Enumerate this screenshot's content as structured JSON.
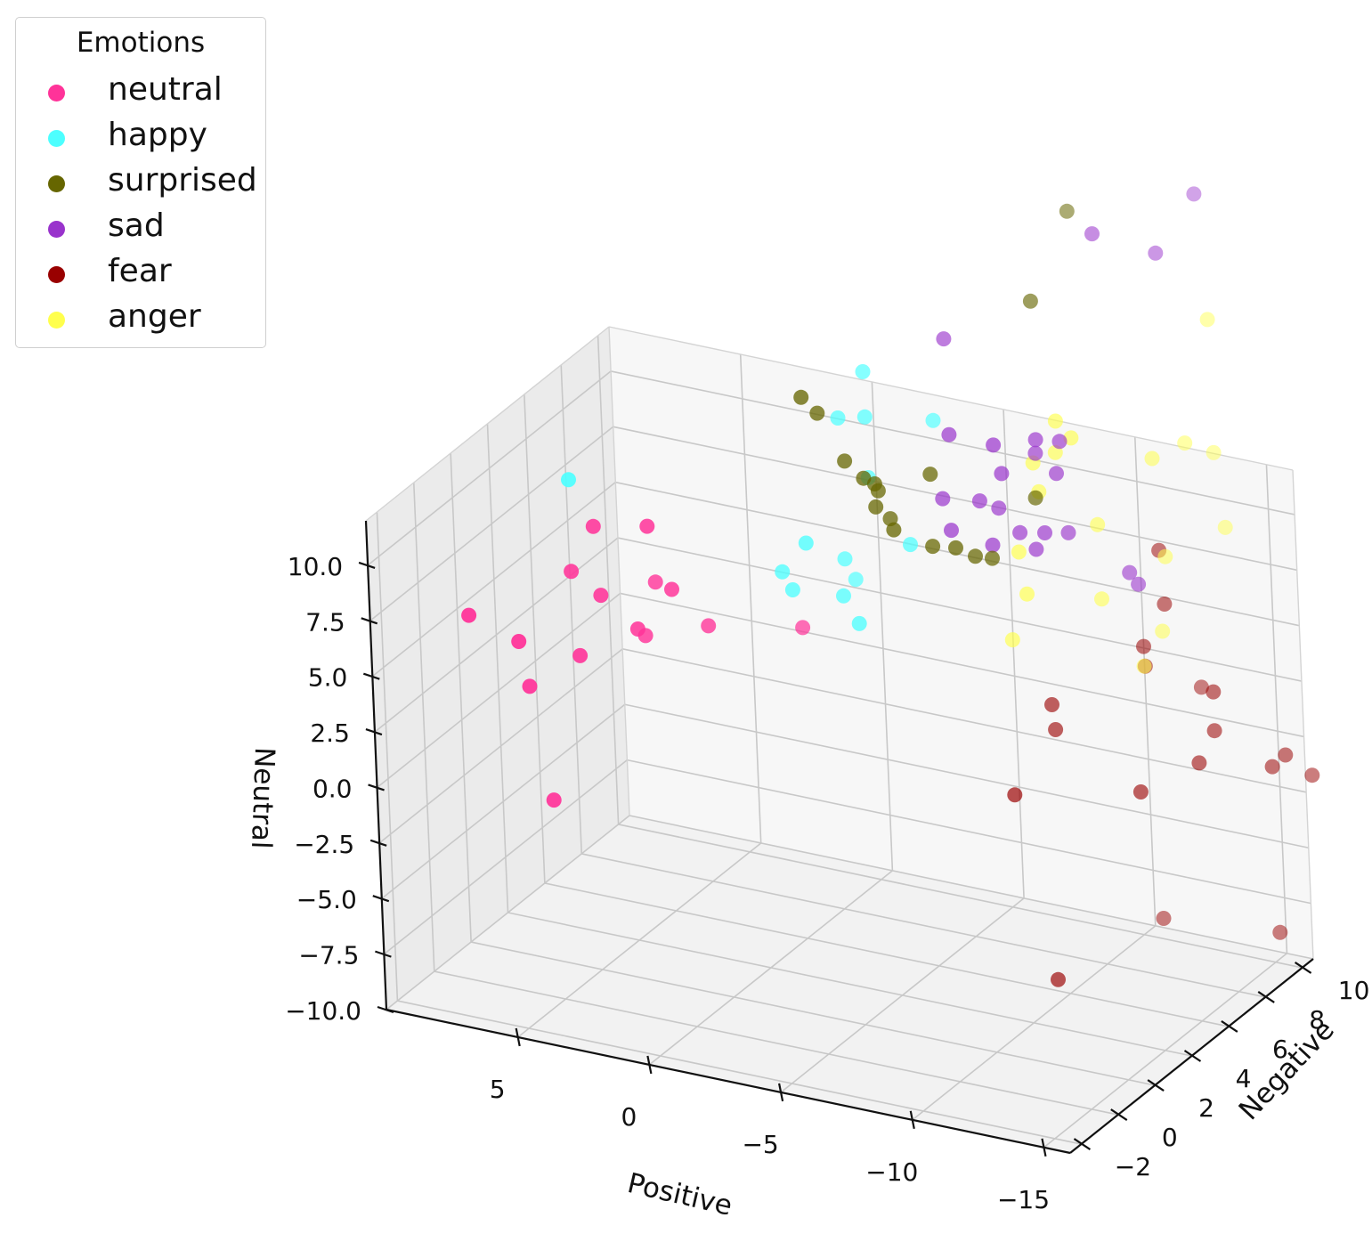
{
  "chart_data": {
    "type": "scatter3d",
    "title": "",
    "xlabel": "Positive",
    "ylabel": "Negative",
    "zlabel": "Neutral",
    "xlim": [
      -16,
      10
    ],
    "ylim": [
      -2.6,
      10.6
    ],
    "zlim": [
      -10,
      12
    ],
    "xticks": [
      5,
      0,
      -5,
      -10,
      -15
    ],
    "xtick_labels": [
      "5",
      "0",
      "−5",
      "−10",
      "−15"
    ],
    "yticks": [
      -2,
      0,
      2,
      4,
      6,
      8,
      10
    ],
    "ytick_labels": [
      "−2",
      "0",
      "2",
      "4",
      "6",
      "8",
      "10"
    ],
    "zticks": [
      -10,
      -7.5,
      -5,
      -2.5,
      0,
      2.5,
      5,
      7.5,
      10
    ],
    "ztick_labels": [
      "−10.0",
      "−7.5",
      "−5.0",
      "−2.5",
      "0.0",
      "2.5",
      "5.0",
      "7.5",
      "10.0"
    ],
    "legend": {
      "title": "Emotions",
      "position": "top-left",
      "entries": [
        "neutral",
        "happy",
        "surprised",
        "sad",
        "fear",
        "anger"
      ]
    },
    "series": [
      {
        "name": "neutral",
        "color": "#ff3399",
        "points": [
          [
            8.1,
            0,
            6.5
          ],
          [
            6.3,
            0.1,
            5.7
          ],
          [
            5.5,
            0.5,
            -1.5
          ],
          [
            6.1,
            0.3,
            3.6
          ],
          [
            4.1,
            1.5,
            7.4
          ],
          [
            4.7,
            1.1,
            4.8
          ],
          [
            2.1,
            2.5,
            7.5
          ],
          [
            3.1,
            2.0,
            5.8
          ],
          [
            5.2,
            1.5,
            8.2
          ],
          [
            4.5,
            1.8,
            10.2
          ],
          [
            2.8,
            2.3,
            10.3
          ],
          [
            3.4,
            2.8,
            4.9
          ],
          [
            3.3,
            3.3,
            7.0
          ],
          [
            1.7,
            3.8,
            5.1
          ],
          [
            -0.6,
            5.6,
            4.4
          ]
        ]
      },
      {
        "name": "happy",
        "color": "#4dffff",
        "points": [
          [
            4.5,
            0.6,
            13.1
          ],
          [
            -1.3,
            4.2,
            7.2
          ],
          [
            -1.0,
            4.1,
            8.0
          ],
          [
            -2.1,
            3.9,
            9.7
          ],
          [
            -2.8,
            4.8,
            6.9
          ],
          [
            -2.4,
            5.5,
            8.0
          ],
          [
            -2.2,
            6.3,
            6.5
          ],
          [
            -5.3,
            5.0,
            9.7
          ],
          [
            -3.8,
            4.2,
            6.3
          ],
          [
            -3.5,
            5.4,
            12.0
          ],
          [
            -2.5,
            5.3,
            14.5
          ],
          [
            -2.8,
            6.3,
            16.0
          ],
          [
            -3.1,
            5.9,
            14.3
          ],
          [
            -5.2,
            6.6,
            14.2
          ]
        ]
      },
      {
        "name": "surprised",
        "color": "#666600",
        "points": [
          [
            -2.0,
            4.1,
            16.1
          ],
          [
            -2.3,
            4.5,
            15.2
          ],
          [
            -3.2,
            4.6,
            13.2
          ],
          [
            -3.9,
            4.6,
            12.6
          ],
          [
            -4.3,
            4.8,
            12.0
          ],
          [
            -4.1,
            4.9,
            12.2
          ],
          [
            -5.2,
            4.3,
            10.8
          ],
          [
            -4.5,
            5.1,
            10.6
          ],
          [
            -4.4,
            4.5,
            11.5
          ],
          [
            -6.3,
            4.8,
            10.0
          ],
          [
            -8.2,
            5.3,
            9.6
          ],
          [
            -7.4,
            4.5,
            10.4
          ],
          [
            -6.1,
            5.1,
            13.0
          ],
          [
            -7.7,
            5.1,
            9.7
          ],
          [
            -9.3,
            6.2,
            12.0
          ],
          [
            -8.4,
            7.6,
            19.7
          ],
          [
            -8.7,
            9.3,
            22.7
          ]
        ]
      },
      {
        "name": "sad",
        "color": "#9933cc",
        "points": [
          [
            -5.3,
            7.2,
            17.5
          ],
          [
            -6.1,
            5.7,
            11.5
          ],
          [
            -6.3,
            5.9,
            14.3
          ],
          [
            -6.6,
            5.4,
            10.4
          ],
          [
            -7.3,
            6.0,
            11.5
          ],
          [
            -7.8,
            6.3,
            11.1
          ],
          [
            -8.2,
            5.6,
            14.5
          ],
          [
            -8.4,
            5.7,
            13.2
          ],
          [
            -7.8,
            5.9,
            9.7
          ],
          [
            -8.5,
            6.4,
            10.1
          ],
          [
            -9.0,
            6.7,
            13.6
          ],
          [
            -9.6,
            6.2,
            10.5
          ],
          [
            -9.1,
            6.6,
            14.3
          ],
          [
            -9.8,
            6.9,
            14.2
          ],
          [
            -9.7,
            6.8,
            12.8
          ],
          [
            -9.1,
            6.4,
            9.5
          ],
          [
            -9.7,
            7.3,
            9.8
          ],
          [
            -11.4,
            8.1,
            7.9
          ],
          [
            -11.5,
            8.4,
            7.2
          ],
          [
            -11.3,
            10.3,
            20.8
          ],
          [
            -9.7,
            9.2,
            22.0
          ],
          [
            -11.7,
            11.9,
            22.5
          ]
        ]
      },
      {
        "name": "fear",
        "color": "#990000",
        "points": [
          [
            -8.1,
            6.1,
            -1.6
          ],
          [
            -8.5,
            7.7,
            1.5
          ],
          [
            -8.6,
            7.7,
            0.4
          ],
          [
            -9.1,
            6.6,
            -10.0
          ],
          [
            -11.7,
            7.8,
            -1.7
          ],
          [
            -13.4,
            8.6,
            -0.5
          ],
          [
            -13.6,
            9.2,
            0.6
          ],
          [
            -15.4,
            9.7,
            -0.9
          ],
          [
            -15.7,
            10.0,
            -0.5
          ],
          [
            -16.4,
            10.4,
            -1.5
          ],
          [
            -12.0,
            10.8,
            1.1
          ],
          [
            -10.9,
            9.4,
            2.7
          ],
          [
            -10.8,
            9.5,
            3.5
          ],
          [
            -11.3,
            10.0,
            5.2
          ],
          [
            -11.1,
            10.1,
            7.5
          ],
          [
            -13.4,
            9.5,
            2.1
          ],
          [
            -10.4,
            10.5,
            -9.5
          ],
          [
            -14.7,
            10.7,
            -9.2
          ]
        ]
      },
      {
        "name": "anger",
        "color": "#ffff4d",
        "points": [
          [
            -8.5,
            6.3,
            9.3
          ],
          [
            -8.6,
            6.5,
            7.3
          ],
          [
            -9.0,
            6.8,
            11.8
          ],
          [
            -8.6,
            7.1,
            12.8
          ],
          [
            -9.4,
            7.2,
            13.4
          ],
          [
            -9.6,
            7.0,
            15.0
          ],
          [
            -10.1,
            7.1,
            14.3
          ],
          [
            -7.9,
            6.6,
            5.0
          ],
          [
            -10.1,
            8.3,
            9.6
          ],
          [
            -11.5,
            9.4,
            12.2
          ],
          [
            -10.0,
            8.5,
            6.1
          ],
          [
            -11.7,
            9.6,
            7.7
          ],
          [
            -11.3,
            8.8,
            3.2
          ],
          [
            -11.4,
            9.7,
            4.2
          ],
          [
            -12.7,
            11.0,
            11.7
          ],
          [
            -12.6,
            11.1,
            17.6
          ],
          [
            -13.1,
            10.9,
            8.5
          ],
          [
            -11.9,
            10.6,
            12.2
          ]
        ]
      }
    ]
  }
}
